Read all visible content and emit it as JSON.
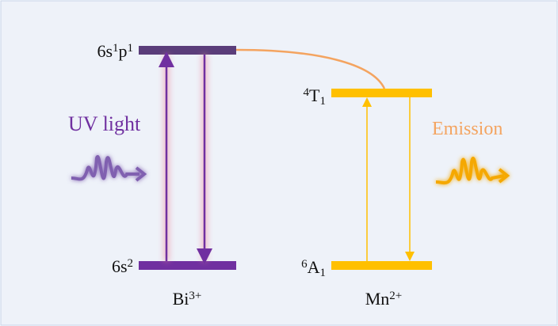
{
  "levels": [
    {
      "label": [
        {
          "text": "6s"
        },
        {
          "sup": "1"
        },
        {
          "text": "p"
        },
        {
          "sup": "1"
        }
      ]
    },
    {
      "label": [
        {
          "text": "6s"
        },
        {
          "sup": "2"
        }
      ]
    },
    {
      "label": [
        {
          "sup": "4"
        },
        {
          "text": "T"
        },
        {
          "sub": "1"
        }
      ]
    },
    {
      "label": [
        {
          "sup": "6"
        },
        {
          "text": "A"
        },
        {
          "sub": "1"
        }
      ]
    }
  ],
  "ions": [
    {
      "label": [
        {
          "text": "Bi"
        },
        {
          "sup": "3+"
        }
      ]
    },
    {
      "label": [
        {
          "text": "Mn"
        },
        {
          "sup": "2+"
        }
      ]
    }
  ],
  "annotations": {
    "excitation": "UV light",
    "emission": "Emission"
  }
}
